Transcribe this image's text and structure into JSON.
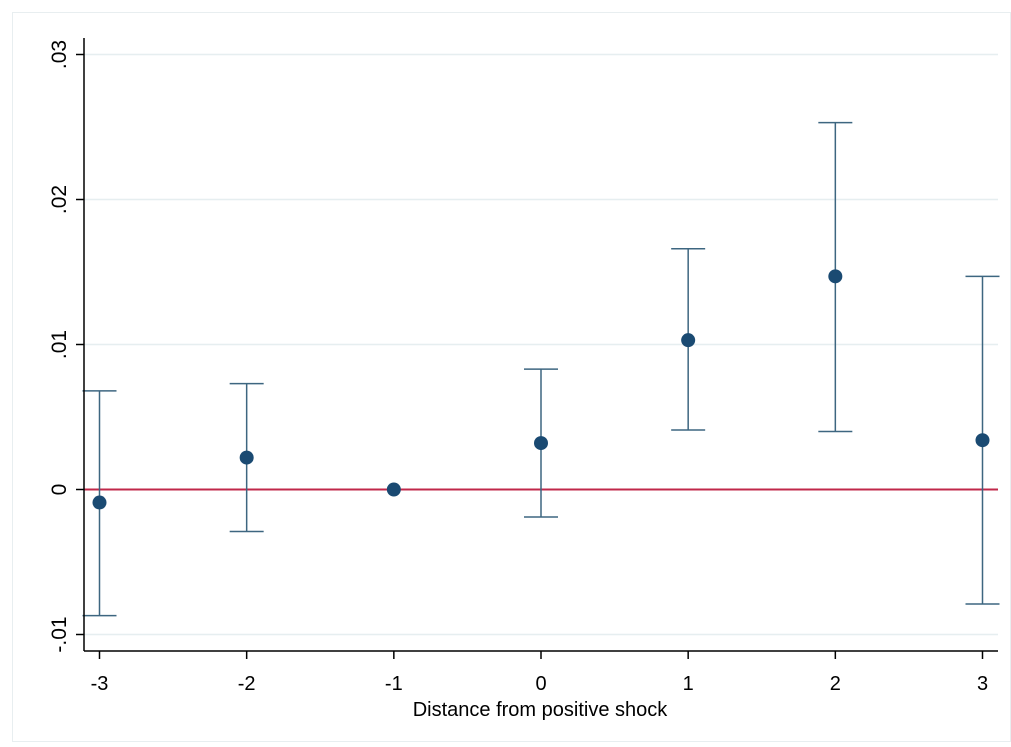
{
  "chart_data": {
    "type": "scatter",
    "title": "",
    "xlabel": "Distance from positive shock",
    "ylabel": "",
    "x": [
      -3,
      -2,
      -1,
      0,
      1,
      2,
      3
    ],
    "x_tick_labels": [
      "-3",
      "-2",
      "-1",
      "0",
      "1",
      "2",
      "3"
    ],
    "y_ticks": [
      -0.01,
      0,
      0.01,
      0.02,
      0.03
    ],
    "y_tick_labels": [
      "-.01",
      "0",
      ".01",
      ".02",
      ".03"
    ],
    "xlim": [
      -3.1,
      3.1
    ],
    "ylim": [
      -0.011,
      0.031
    ],
    "grid": true,
    "reference_line": {
      "y": 0,
      "color": "#c0284a"
    },
    "series": [
      {
        "point_estimates": [
          -0.0009,
          0.0022,
          0.0,
          0.0032,
          0.0103,
          0.0147,
          0.0034
        ],
        "ci_lower": [
          -0.0087,
          -0.0029,
          null,
          -0.0019,
          0.0041,
          0.004,
          -0.0079
        ],
        "ci_upper": [
          0.0068,
          0.0073,
          null,
          0.0083,
          0.0166,
          0.0253,
          0.0147
        ],
        "point_color": "#1a4a72",
        "ci_color": "#3d6680"
      }
    ],
    "grid_color": "#e6eef0",
    "axis_color": "#000000"
  }
}
